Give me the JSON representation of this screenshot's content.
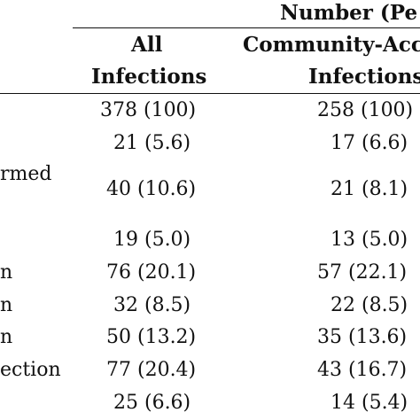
{
  "header": {
    "group_label": "Number (Pe",
    "col_all": [
      "All",
      "Infections"
    ],
    "col_community": [
      "Community-Acc",
      "Infections"
    ]
  },
  "row_labels": [
    "",
    "",
    "rmed",
    "",
    "n",
    "n",
    "n",
    "ection",
    ""
  ],
  "rows": [
    {
      "all": "378 (100)",
      "community": "258 (100)"
    },
    {
      "all": "21 (5.6)",
      "community": "17 (6.6)"
    },
    {
      "all": "40 (10.6)",
      "community": "21 (8.1)"
    },
    {
      "all": "19 (5.0)",
      "community": "13 (5.0)"
    },
    {
      "all": "76 (20.1)",
      "community": "57 (22.1)"
    },
    {
      "all": "32 (8.5)",
      "community": "22 (8.5)"
    },
    {
      "all": "50 (13.2)",
      "community": "35 (13.6)"
    },
    {
      "all": "77 (20.4)",
      "community": "43 (16.7)"
    },
    {
      "all": "25 (6.6)",
      "community": "14 (5.4)"
    }
  ]
}
